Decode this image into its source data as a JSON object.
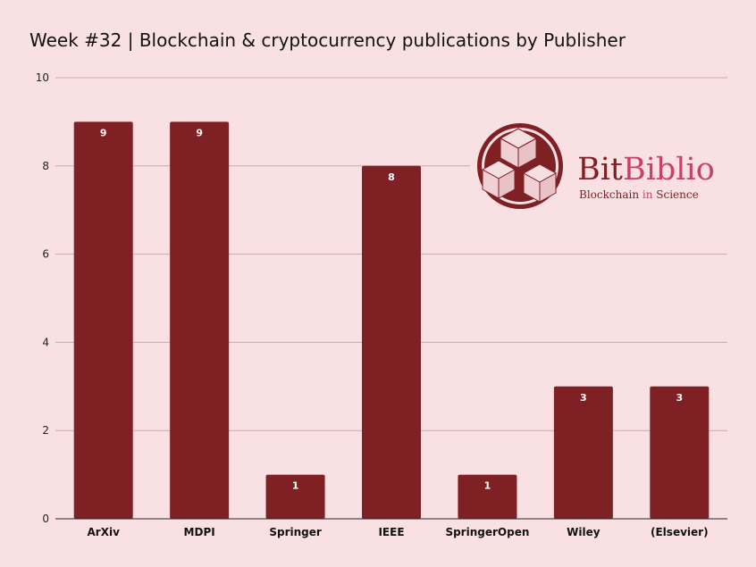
{
  "chart_data": {
    "type": "bar",
    "title": "Week #32 | Blockchain & cryptocurrency publications by Publisher",
    "categories": [
      "ArXiv",
      "MDPI",
      "Springer",
      "IEEE",
      "SpringerOpen",
      "Wiley",
      "(Elsevier)"
    ],
    "values": [
      9,
      9,
      1,
      8,
      1,
      3,
      3
    ],
    "xlabel": "",
    "ylabel": "",
    "ylim": [
      0,
      10
    ],
    "yticks": [
      0,
      2,
      4,
      6,
      8,
      10
    ],
    "grid": true,
    "data_labels": true,
    "colors": {
      "bar": "#7f2124",
      "background": "#f9e1e3",
      "grid": "#c9a9ac",
      "data_label": "#ffffff"
    }
  },
  "logo": {
    "word_part1": "Bit",
    "word_part2": "Biblio",
    "tagline_part1": "Blockchain ",
    "tagline_part2": "in",
    "tagline_part3": " Science",
    "colors": {
      "dark": "#7f2124",
      "accent": "#c9416a"
    }
  }
}
